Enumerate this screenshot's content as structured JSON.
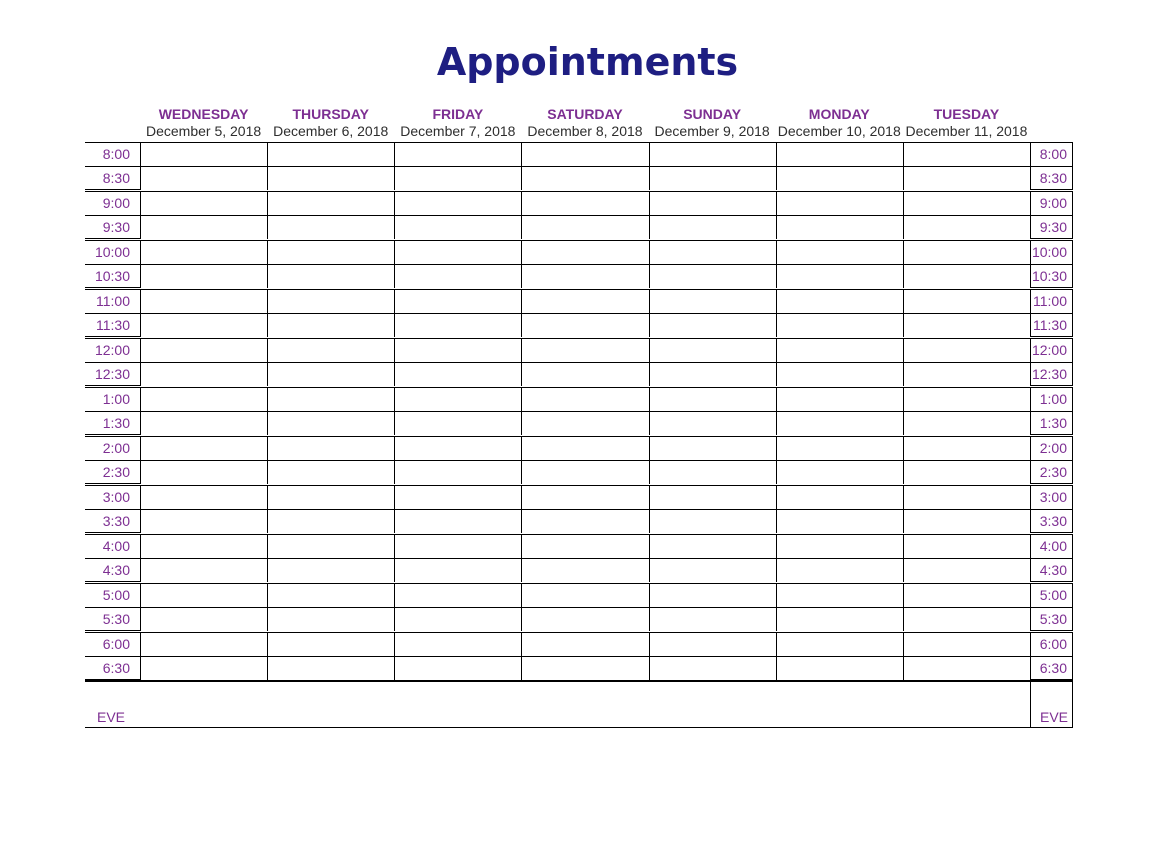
{
  "title": "Appointments",
  "eve_label": "EVE",
  "days": [
    {
      "name": "WEDNESDAY",
      "date": "December 5, 2018"
    },
    {
      "name": "THURSDAY",
      "date": "December 6, 2018"
    },
    {
      "name": "FRIDAY",
      "date": "December 7, 2018"
    },
    {
      "name": "SATURDAY",
      "date": "December 8, 2018"
    },
    {
      "name": "SUNDAY",
      "date": "December 9, 2018"
    },
    {
      "name": "MONDAY",
      "date": "December 10, 2018"
    },
    {
      "name": "TUESDAY",
      "date": "December 11, 2018"
    }
  ],
  "time_blocks": [
    [
      "8:00",
      "8:30"
    ],
    [
      "9:00",
      "9:30"
    ],
    [
      "10:00",
      "10:30"
    ],
    [
      "11:00",
      "11:30"
    ],
    [
      "12:00",
      "12:30"
    ],
    [
      "1:00",
      "1:30"
    ],
    [
      "2:00",
      "2:30"
    ],
    [
      "3:00",
      "3:30"
    ],
    [
      "4:00",
      "4:30"
    ],
    [
      "5:00",
      "5:30"
    ],
    [
      "6:00",
      "6:30"
    ]
  ],
  "colors": {
    "title_text": "#1e1e82",
    "accent_purple": "#7d2f92",
    "date_text": "#2e2e2e",
    "grid_line": "#000000"
  }
}
